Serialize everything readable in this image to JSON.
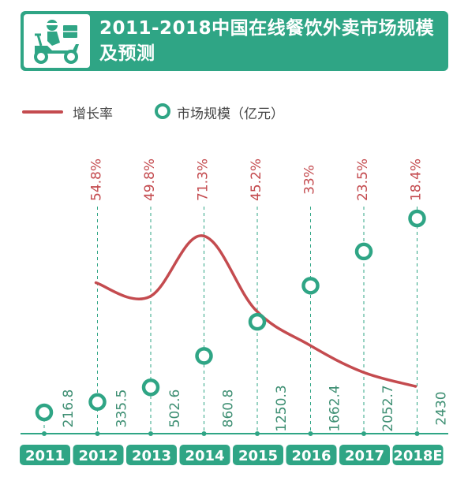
{
  "header": {
    "title": "2011-2018中国在线餐饮外卖市场规模及预测",
    "icon": "delivery-scooter-icon"
  },
  "legend": {
    "growth_label": "增长率",
    "size_label": "市场规模（亿元）"
  },
  "colors": {
    "green": "#2fa585",
    "red": "#c44b4f",
    "label_green": "#3e8f73"
  },
  "chart_data": {
    "type": "line",
    "title": "2011-2018中国在线餐饮外卖市场规模及预测",
    "categories": [
      "2011",
      "2012",
      "2013",
      "2014",
      "2015",
      "2016",
      "2017",
      "2018E"
    ],
    "series": [
      {
        "name": "增长率",
        "values": [
          null,
          54.8,
          49.8,
          71.3,
          45.2,
          33,
          23.5,
          18.4
        ],
        "labels": [
          "",
          "54.8%",
          "49.8%",
          "71.3%",
          "45.2%",
          "33%",
          "23.5%",
          "18.4%"
        ],
        "style": "smooth-line"
      },
      {
        "name": "市场规模（亿元）",
        "values": [
          216.8,
          335.5,
          502.6,
          860.8,
          1250.3,
          1662.4,
          2052.7,
          2430
        ],
        "labels": [
          "216.8",
          "335.5",
          "502.6",
          "860.8",
          "1250.3",
          "1662.4",
          "2052.7",
          "2430"
        ],
        "style": "circle-markers"
      }
    ],
    "size_range": [
      0,
      2430
    ],
    "growth_range": [
      20,
      75
    ],
    "grid": false,
    "legend_position": "top-left"
  }
}
